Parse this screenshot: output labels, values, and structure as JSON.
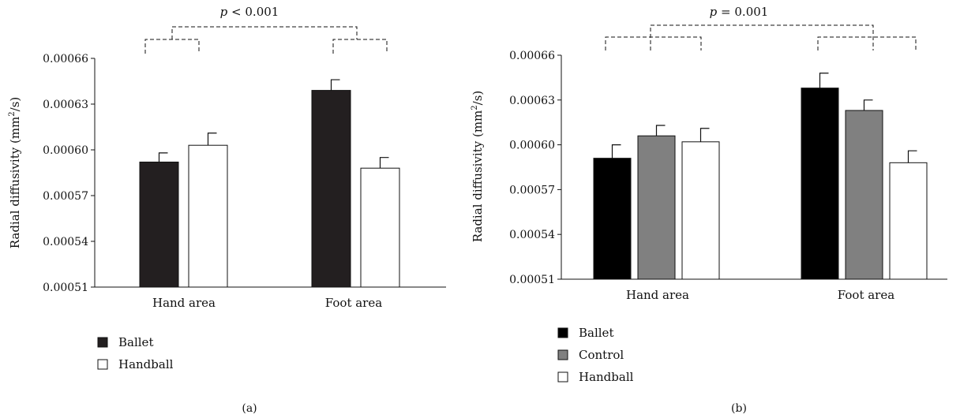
{
  "chart_data": [
    {
      "type": "bar",
      "panel_label": "(a)",
      "ylabel": "Radial diffusivity (mm²/s)",
      "ylabel_parts": {
        "main": "Radial diffusivity (mm",
        "sup": "2",
        "tail": "/s)"
      },
      "ylim": [
        0.00051,
        0.00066
      ],
      "yticks": [
        "0.00051",
        "0.00054",
        "0.00057",
        "0.00060",
        "0.00063",
        "0.00066"
      ],
      "categories": [
        "Hand area",
        "Foot area"
      ],
      "series": [
        {
          "name": "Ballet",
          "color": "#231f20",
          "values": [
            0.000592,
            0.000639
          ],
          "errors": [
            6e-06,
            7e-06
          ]
        },
        {
          "name": "Handball",
          "color": "#ffffff",
          "values": [
            0.000603,
            0.000588
          ],
          "errors": [
            8e-06,
            7e-06
          ]
        }
      ],
      "annotation": {
        "p_italic": "p",
        "p_rest": " < 0.001"
      },
      "legend_position": "bottom-left",
      "grid": false
    },
    {
      "type": "bar",
      "panel_label": "(b)",
      "ylabel": "Radial diffusivity (mm²/s)",
      "ylabel_parts": {
        "main": "Radial diffusivity (mm",
        "sup": "2",
        "tail": "/s)"
      },
      "ylim": [
        0.00051,
        0.00066
      ],
      "yticks": [
        "0.00051",
        "0.00054",
        "0.00057",
        "0.00060",
        "0.00063",
        "0.00066"
      ],
      "categories": [
        "Hand area",
        "Foot area"
      ],
      "series": [
        {
          "name": "Ballet",
          "color": "#000000",
          "values": [
            0.000591,
            0.000638
          ],
          "errors": [
            9e-06,
            1e-05
          ]
        },
        {
          "name": "Control",
          "color": "#808080",
          "values": [
            0.000606,
            0.000623
          ],
          "errors": [
            7e-06,
            7e-06
          ]
        },
        {
          "name": "Handball",
          "color": "#ffffff",
          "values": [
            0.000602,
            0.000588
          ],
          "errors": [
            9e-06,
            8e-06
          ]
        }
      ],
      "annotation": {
        "p_italic": "p",
        "p_rest": " = 0.001"
      },
      "legend_position": "bottom-left",
      "grid": false
    }
  ]
}
